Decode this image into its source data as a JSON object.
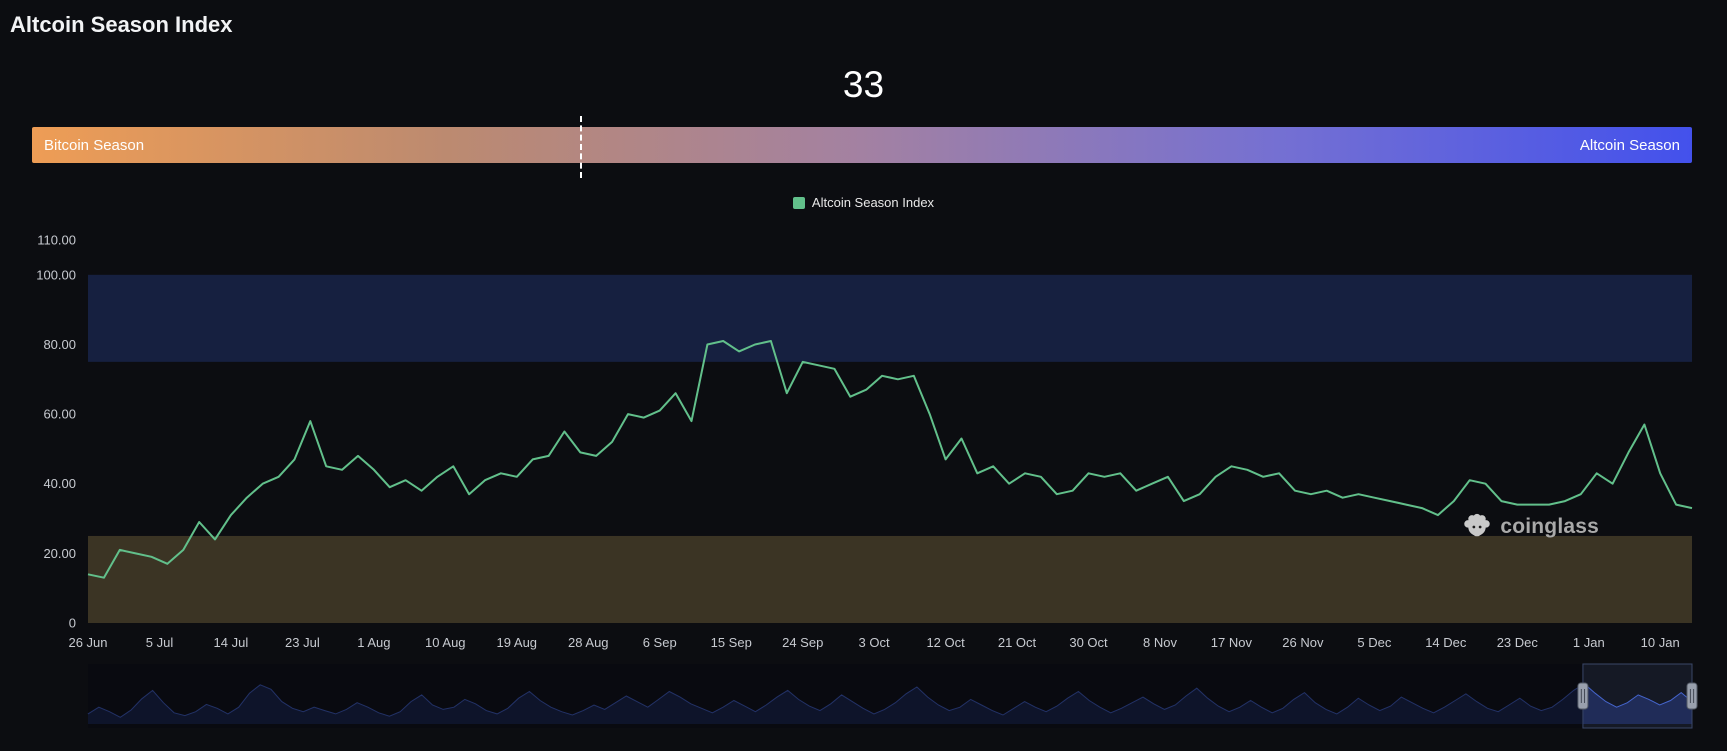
{
  "page": {
    "title": "Altcoin Season Index",
    "current_value": "33",
    "background_color": "#0c0d11"
  },
  "gauge": {
    "left_label": "Bitcoin Season",
    "right_label": "Altcoin Season",
    "value": 33,
    "min": 0,
    "max": 100,
    "gradient_stops": [
      "#EE9D55",
      "#BC8A70",
      "#A381A2",
      "#7570D2",
      "#4351EC"
    ],
    "marker_color": "#ffffff"
  },
  "legend": {
    "label": "Altcoin Season Index",
    "marker_color": "#62C08B"
  },
  "watermark": {
    "text": "coinglass"
  },
  "chart_data": {
    "type": "line",
    "title": "Altcoin Season Index",
    "ylim": [
      0,
      110
    ],
    "grid": false,
    "legend_position": "top-center",
    "y_ticks": [
      {
        "value": 0,
        "label": "0"
      },
      {
        "value": 20,
        "label": "20.00"
      },
      {
        "value": 40,
        "label": "40.00"
      },
      {
        "value": 60,
        "label": "60.00"
      },
      {
        "value": 80,
        "label": "80.00"
      },
      {
        "value": 100,
        "label": "100.00"
      },
      {
        "value": 110,
        "label": "110.00"
      }
    ],
    "x_tick_labels": [
      "26 Jun",
      "5 Jul",
      "14 Jul",
      "23 Jul",
      "1 Aug",
      "10 Aug",
      "19 Aug",
      "28 Aug",
      "6 Sep",
      "15 Sep",
      "24 Sep",
      "3 Oct",
      "12 Oct",
      "21 Oct",
      "30 Oct",
      "8 Nov",
      "17 Nov",
      "26 Nov",
      "5 Dec",
      "14 Dec",
      "23 Dec",
      "1 Jan",
      "10 Jan"
    ],
    "x_tick_interval_days": 9,
    "x_step_days": 2,
    "plot_bands": [
      {
        "from": 75,
        "to": 100,
        "color": "#162040",
        "meaning": "altcoin season zone"
      },
      {
        "from": 0,
        "to": 25,
        "color": "#3b3424",
        "meaning": "bitcoin season zone"
      }
    ],
    "series": [
      {
        "name": "Altcoin Season Index",
        "color": "#62C08B",
        "values": [
          14,
          13,
          21,
          20,
          19,
          17,
          21,
          29,
          24,
          31,
          36,
          40,
          42,
          47,
          58,
          45,
          44,
          48,
          44,
          39,
          41,
          38,
          42,
          45,
          37,
          41,
          43,
          42,
          47,
          48,
          55,
          49,
          48,
          52,
          60,
          59,
          61,
          66,
          58,
          80,
          81,
          78,
          80,
          81,
          66,
          75,
          74,
          73,
          65,
          67,
          71,
          70,
          71,
          60,
          47,
          53,
          43,
          45,
          40,
          43,
          42,
          37,
          38,
          43,
          42,
          43,
          38,
          40,
          42,
          35,
          37,
          42,
          45,
          44,
          42,
          43,
          38,
          37,
          38,
          36,
          37,
          36,
          35,
          34,
          33,
          31,
          35,
          41,
          40,
          35,
          34,
          34,
          34,
          35,
          37,
          43,
          40,
          49,
          57,
          43,
          34,
          33
        ]
      }
    ],
    "navigator": {
      "line_color": "#4363cf",
      "fill_color": "#18234a",
      "selection_start_frac": 0.932,
      "selection_end_frac": 1.0,
      "values": [
        18,
        30,
        22,
        12,
        25,
        45,
        60,
        38,
        20,
        15,
        22,
        35,
        28,
        18,
        30,
        55,
        70,
        62,
        40,
        28,
        22,
        30,
        24,
        18,
        26,
        38,
        30,
        20,
        14,
        22,
        40,
        52,
        34,
        26,
        30,
        44,
        36,
        24,
        18,
        28,
        46,
        58,
        42,
        30,
        22,
        16,
        24,
        34,
        26,
        38,
        50,
        40,
        30,
        44,
        58,
        48,
        36,
        28,
        20,
        30,
        42,
        32,
        22,
        34,
        48,
        60,
        44,
        32,
        24,
        36,
        52,
        40,
        28,
        18,
        26,
        38,
        54,
        66,
        48,
        34,
        24,
        30,
        44,
        34,
        24,
        16,
        28,
        40,
        30,
        22,
        32,
        46,
        58,
        42,
        30,
        20,
        28,
        38,
        48,
        36,
        26,
        34,
        50,
        64,
        46,
        32,
        22,
        30,
        42,
        30,
        20,
        28,
        44,
        56,
        38,
        26,
        18,
        30,
        46,
        34,
        24,
        32,
        48,
        38,
        28,
        20,
        30,
        42,
        54,
        40,
        28,
        22,
        34,
        46,
        32,
        24,
        30,
        44,
        60,
        72,
        55,
        40,
        30,
        38,
        52,
        44,
        34,
        42,
        56,
        40
      ]
    }
  }
}
